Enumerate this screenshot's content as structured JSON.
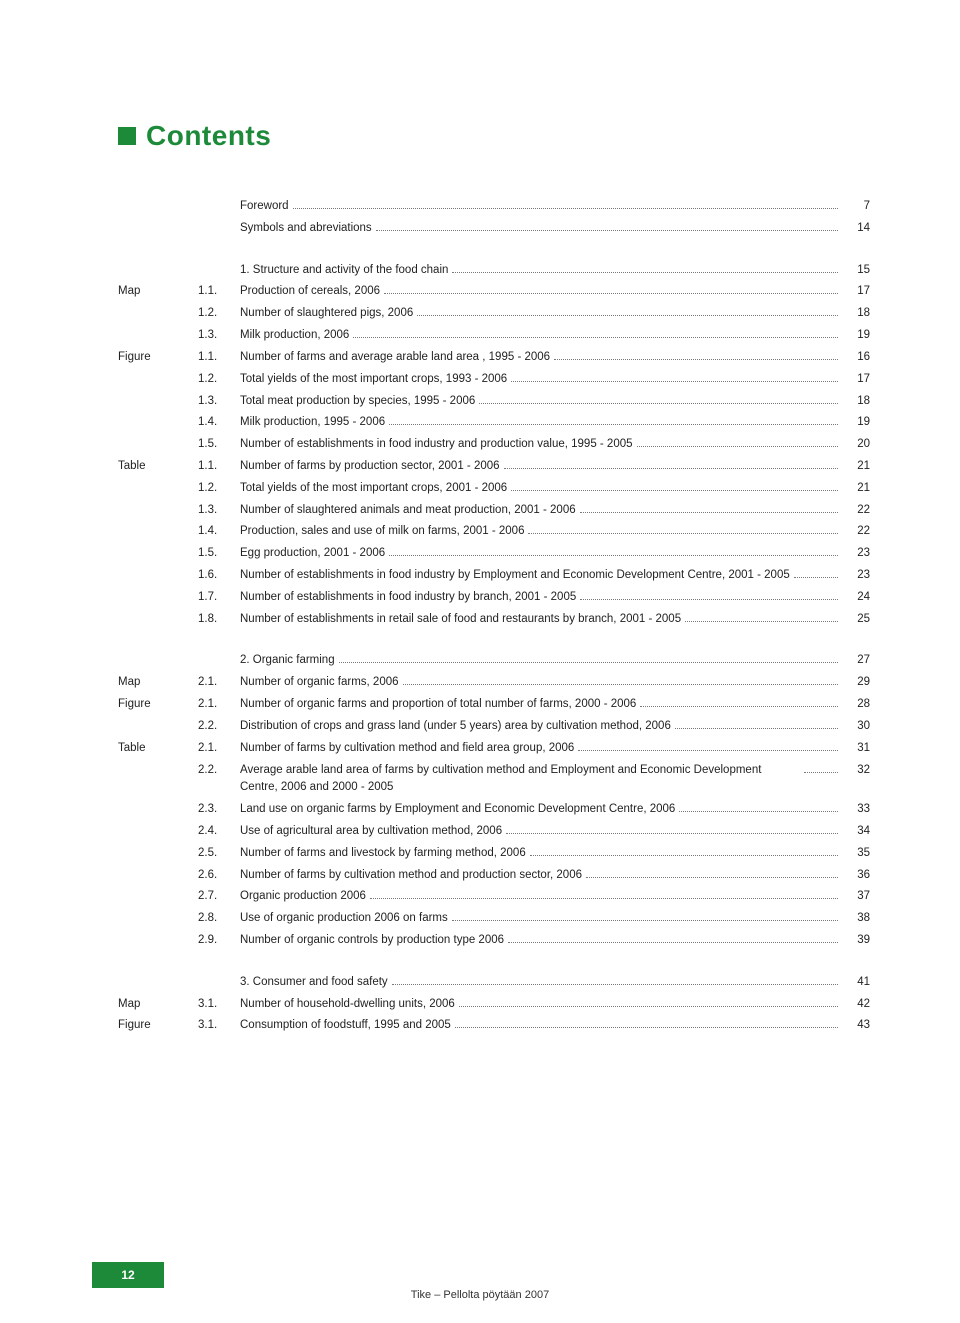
{
  "heading": "Contents",
  "groups": [
    {
      "entries": [
        {
          "label": "",
          "num": "",
          "title": "Foreword",
          "page": "7"
        },
        {
          "label": "",
          "num": "",
          "title": "Symbols and abreviations",
          "page": "14"
        }
      ]
    },
    {
      "entries": [
        {
          "label": "",
          "num": "",
          "title": "1. Structure and activity of the food chain",
          "page": "15"
        },
        {
          "label": "Map",
          "num": "1.1.",
          "title": "Production of cereals, 2006",
          "page": "17"
        },
        {
          "label": "",
          "num": "1.2.",
          "title": "Number of slaughtered pigs, 2006",
          "page": "18"
        },
        {
          "label": "",
          "num": "1.3.",
          "title": "Milk production, 2006",
          "page": "19"
        },
        {
          "label": "Figure",
          "num": "1.1.",
          "title": "Number of farms and average arable land area , 1995 - 2006",
          "page": "16"
        },
        {
          "label": "",
          "num": "1.2.",
          "title": "Total yields of the most important crops, 1993 - 2006",
          "page": "17"
        },
        {
          "label": "",
          "num": "1.3.",
          "title": "Total meat production by species, 1995 - 2006",
          "page": "18"
        },
        {
          "label": "",
          "num": "1.4.",
          "title": "Milk production, 1995 - 2006",
          "page": "19"
        },
        {
          "label": "",
          "num": "1.5.",
          "title": "Number of establishments in food industry and production value, 1995 - 2005",
          "page": "20"
        },
        {
          "label": "Table",
          "num": "1.1.",
          "title": "Number of farms by production sector, 2001 - 2006",
          "page": "21"
        },
        {
          "label": "",
          "num": "1.2.",
          "title": "Total yields of the most important crops, 2001 - 2006",
          "page": "21"
        },
        {
          "label": "",
          "num": "1.3.",
          "title": "Number of slaughtered animals and meat production, 2001 - 2006",
          "page": "22"
        },
        {
          "label": "",
          "num": "1.4.",
          "title": "Production, sales and use of milk on farms, 2001 - 2006",
          "page": "22"
        },
        {
          "label": "",
          "num": "1.5.",
          "title": "Egg production, 2001 - 2006",
          "page": "23"
        },
        {
          "label": "",
          "num": "1.6.",
          "title": "Number of establishments in food industry by Employment and Economic Development Centre, 2001 - 2005",
          "page": "23"
        },
        {
          "label": "",
          "num": "1.7.",
          "title": "Number of establishments in food industry by branch, 2001 - 2005",
          "page": "24"
        },
        {
          "label": "",
          "num": "1.8.",
          "title": "Number of establishments in retail sale of food and restaurants by branch, 2001 - 2005",
          "page": "25"
        }
      ]
    },
    {
      "entries": [
        {
          "label": "",
          "num": "",
          "title": "2. Organic farming",
          "page": "27"
        },
        {
          "label": "Map",
          "num": "2.1.",
          "title": "Number of organic farms, 2006",
          "page": "29"
        },
        {
          "label": "Figure",
          "num": "2.1.",
          "title": "Number of organic farms and proportion of total number of farms, 2000 - 2006",
          "page": "28"
        },
        {
          "label": "",
          "num": "2.2.",
          "title": "Distribution of crops and grass land (under 5 years) area by cultivation method, 2006",
          "page": "30"
        },
        {
          "label": "Table",
          "num": "2.1.",
          "title": "Number of farms by cultivation method and field area group, 2006",
          "page": "31"
        },
        {
          "label": "",
          "num": "2.2.",
          "title": "Average arable land area of farms by cultivation method and Employment and Economic Development Centre, 2006 and 2000 - 2005",
          "page": "32",
          "multi": true
        },
        {
          "label": "",
          "num": "2.3.",
          "title": "Land use on organic farms by Employment and Economic Development Centre, 2006",
          "page": "33"
        },
        {
          "label": "",
          "num": "2.4.",
          "title": "Use of agricultural area by cultivation method, 2006",
          "page": "34"
        },
        {
          "label": "",
          "num": "2.5.",
          "title": "Number of farms and livestock by farming method, 2006",
          "page": "35"
        },
        {
          "label": "",
          "num": "2.6.",
          "title": "Number of farms by cultivation method and production sector, 2006",
          "page": "36"
        },
        {
          "label": "",
          "num": "2.7.",
          "title": "Organic production 2006",
          "page": "37"
        },
        {
          "label": "",
          "num": "2.8.",
          "title": "Use of organic production 2006 on farms",
          "page": "38"
        },
        {
          "label": "",
          "num": "2.9.",
          "title": "Number of organic controls by production type 2006",
          "page": "39"
        }
      ]
    },
    {
      "entries": [
        {
          "label": "",
          "num": "",
          "title": "3. Consumer and food safety",
          "page": "41"
        },
        {
          "label": "Map",
          "num": "3.1.",
          "title": "Number of household-dwelling units, 2006",
          "page": "42"
        },
        {
          "label": "Figure",
          "num": "3.1.",
          "title": "Consumption of foodstuff, 1995 and 2005",
          "page": "43"
        }
      ]
    }
  ],
  "footer": {
    "page_number": "12",
    "text": "Tike – Pellolta pöytään 2007"
  },
  "colors": {
    "accent": "#1d8a3a",
    "text": "#222222",
    "leader": "#777777",
    "background": "#ffffff"
  }
}
